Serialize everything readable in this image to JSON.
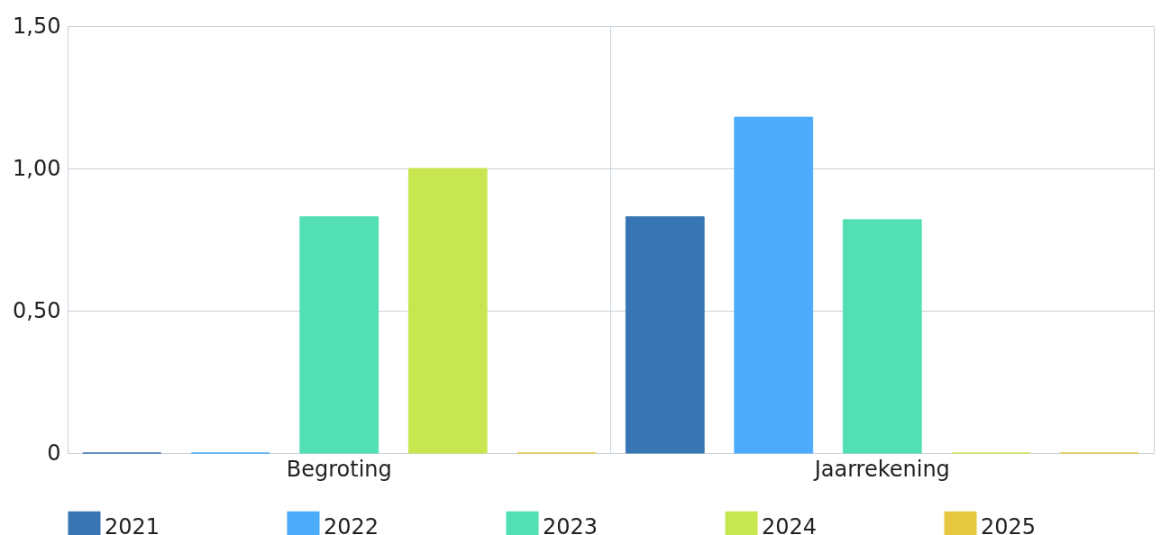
{
  "chart_data": {
    "type": "bar",
    "categories": [
      "Begroting",
      "Jaarrekening"
    ],
    "series": [
      {
        "name": "2021",
        "color": "#3776b3",
        "values": [
          0,
          0.83
        ]
      },
      {
        "name": "2022",
        "color": "#4dabfc",
        "values": [
          0,
          1.18
        ]
      },
      {
        "name": "2023",
        "color": "#52dfb3",
        "values": [
          0.83,
          0.82
        ]
      },
      {
        "name": "2024",
        "color": "#c8e650",
        "values": [
          1.0,
          0
        ]
      },
      {
        "name": "2025",
        "color": "#e6c840",
        "values": [
          0,
          0
        ]
      }
    ],
    "ylim": [
      0,
      1.5
    ],
    "yticks": [
      {
        "value": 0,
        "label": "0"
      },
      {
        "value": 0.5,
        "label": "0,50"
      },
      {
        "value": 1,
        "label": "1,00"
      },
      {
        "value": 1.5,
        "label": "1,50"
      }
    ],
    "grid": true,
    "legend": "bottom"
  }
}
